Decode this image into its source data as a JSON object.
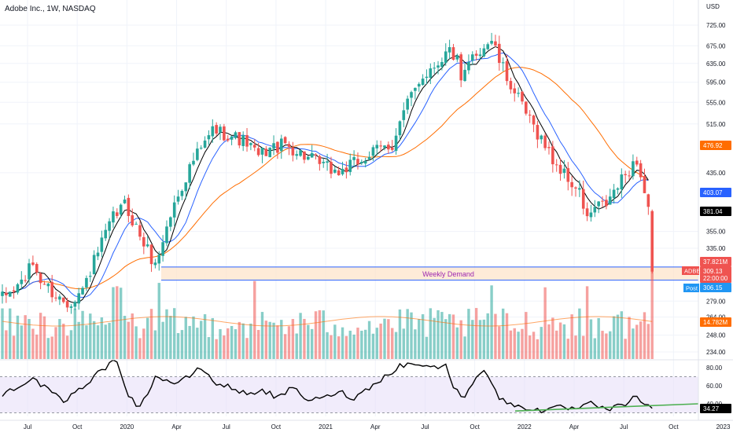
{
  "header": {
    "title": "Adobe Inc., 1W, NASDAQ"
  },
  "chart_data": {
    "type": "candlestick",
    "price_axis": {
      "currency": "USD",
      "ticks": [
        "725.00",
        "675.00",
        "635.00",
        "595.00",
        "555.00",
        "515.00",
        "435.00",
        "355.00",
        "335.00",
        "279.00",
        "264.00",
        "248.00",
        "234.00"
      ],
      "ticks_values": [
        725,
        675,
        635,
        595,
        555,
        515,
        435,
        355,
        335,
        279,
        264,
        248,
        234
      ]
    },
    "rsi_axis": {
      "ticks": [
        "80.00",
        "60.00",
        "40.00"
      ],
      "ticks_values": [
        80,
        60,
        40
      ],
      "band": [
        30,
        70
      ]
    },
    "time_axis": {
      "labels": [
        "Jul",
        "Oct",
        "2020",
        "Apr",
        "Jul",
        "Oct",
        "2021",
        "Apr",
        "Jul",
        "Oct",
        "2022",
        "Apr",
        "Jul",
        "Oct",
        "2023"
      ],
      "label_week_index": [
        0,
        13,
        26,
        39,
        52,
        65,
        78,
        91,
        104,
        117,
        130,
        143,
        156,
        169,
        182
      ]
    },
    "badges": {
      "ma_slow": {
        "value": "476.92",
        "color": "#ff6d00"
      },
      "ma_mid": {
        "value": "403.07",
        "color": "#2962ff"
      },
      "last_close": {
        "value": "381.04",
        "color": "#000000"
      },
      "volume": {
        "value": "37.821M",
        "color": "#ef5350"
      },
      "symbol": {
        "value": "ADBE",
        "color": "#ef5350"
      },
      "price": {
        "value": "309.13",
        "color": "#ef5350"
      },
      "countdown": {
        "value": "22:00:00",
        "color": "#ef5350"
      },
      "post_label": {
        "value": "Post",
        "color": "#2196f3"
      },
      "post_price": {
        "value": "306.15",
        "color": "#2196f3"
      },
      "vol_ma": {
        "value": "14.782M",
        "color": "#ff6d00"
      },
      "rsi": {
        "value": "34.27",
        "color": "#000000"
      }
    },
    "demand_zone": {
      "label": "Weekly Demand",
      "top": 314,
      "bottom": 300
    },
    "colors": {
      "up": "#26a69a",
      "down": "#ef5350",
      "ma_fast": "#000000",
      "ma_mid": "#2962ff",
      "ma_slow": "#ff6d00",
      "rsi_line": "#000000",
      "rsi_band": "#e6dcf7",
      "rsi_trendline": "#4caf50",
      "demand_fill": "#fde3c8",
      "demand_line": "#2962ff"
    },
    "waypoints": [
      [
        0,
        282
      ],
      [
        3,
        290
      ],
      [
        6,
        303
      ],
      [
        8,
        318
      ],
      [
        10,
        300
      ],
      [
        14,
        284
      ],
      [
        17,
        277
      ],
      [
        21,
        290
      ],
      [
        25,
        330
      ],
      [
        29,
        372
      ],
      [
        32,
        390
      ],
      [
        36,
        350
      ],
      [
        40,
        315
      ],
      [
        45,
        390
      ],
      [
        50,
        455
      ],
      [
        53,
        480
      ],
      [
        55,
        505
      ],
      [
        60,
        495
      ],
      [
        64,
        482
      ],
      [
        67,
        460
      ],
      [
        69,
        470
      ],
      [
        74,
        480
      ],
      [
        78,
        465
      ],
      [
        84,
        445
      ],
      [
        88,
        435
      ],
      [
        94,
        455
      ],
      [
        98,
        470
      ],
      [
        102,
        480
      ],
      [
        105,
        535
      ],
      [
        109,
        600
      ],
      [
        114,
        640
      ],
      [
        117,
        665
      ],
      [
        119,
        640
      ],
      [
        120,
        590
      ],
      [
        123,
        650
      ],
      [
        126,
        675
      ],
      [
        128,
        690
      ],
      [
        130,
        640
      ],
      [
        132,
        605
      ],
      [
        135,
        560
      ],
      [
        138,
        520
      ],
      [
        141,
        490
      ],
      [
        144,
        455
      ],
      [
        148,
        425
      ],
      [
        151,
        405
      ],
      [
        153,
        370
      ],
      [
        155,
        385
      ],
      [
        158,
        390
      ],
      [
        161,
        415
      ],
      [
        164,
        440
      ],
      [
        166,
        455
      ],
      [
        168,
        405
      ],
      [
        169,
        385
      ],
      [
        170,
        309
      ]
    ],
    "rsi_waypoints": [
      [
        0,
        50
      ],
      [
        4,
        60
      ],
      [
        8,
        68
      ],
      [
        12,
        55
      ],
      [
        16,
        42
      ],
      [
        20,
        55
      ],
      [
        26,
        78
      ],
      [
        30,
        88
      ],
      [
        33,
        50
      ],
      [
        36,
        35
      ],
      [
        40,
        70
      ],
      [
        46,
        62
      ],
      [
        52,
        80
      ],
      [
        56,
        62
      ],
      [
        60,
        58
      ],
      [
        64,
        50
      ],
      [
        68,
        56
      ],
      [
        72,
        46
      ],
      [
        76,
        58
      ],
      [
        80,
        44
      ],
      [
        84,
        46
      ],
      [
        88,
        54
      ],
      [
        92,
        46
      ],
      [
        96,
        58
      ],
      [
        100,
        70
      ],
      [
        104,
        82
      ],
      [
        108,
        85
      ],
      [
        112,
        80
      ],
      [
        116,
        82
      ],
      [
        118,
        60
      ],
      [
        121,
        45
      ],
      [
        124,
        72
      ],
      [
        126,
        78
      ],
      [
        128,
        65
      ],
      [
        130,
        45
      ],
      [
        134,
        38
      ],
      [
        138,
        35
      ],
      [
        142,
        32
      ],
      [
        146,
        36
      ],
      [
        150,
        34
      ],
      [
        154,
        40
      ],
      [
        158,
        33
      ],
      [
        162,
        38
      ],
      [
        166,
        48
      ],
      [
        168,
        40
      ],
      [
        170,
        34
      ]
    ]
  }
}
